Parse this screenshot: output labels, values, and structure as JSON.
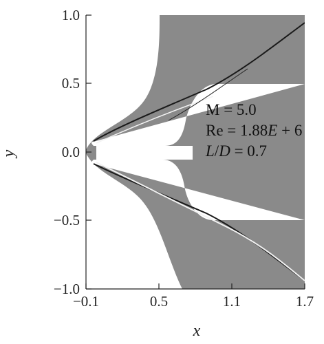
{
  "figure": {
    "type": "schlieren-field-plot",
    "x_axis": {
      "label": "x",
      "range": [
        -0.1,
        1.7
      ],
      "ticks": [
        "−0.1",
        "0.5",
        "1.1",
        "1.7"
      ]
    },
    "y_axis": {
      "label": "y",
      "range": [
        -1.0,
        1.0
      ],
      "ticks": [
        "1.0",
        "0.5",
        "0.0",
        "−0.5",
        "−1.0"
      ]
    },
    "annotations": {
      "mach": "M = 5.0",
      "reynolds_prefix": "Re = 1.88",
      "reynolds_E": "E",
      "reynolds_suffix": " + 6",
      "ld_L": "L",
      "ld_slash": "/",
      "ld_D": "D",
      "ld_value": " = 0.7"
    },
    "colors": {
      "field": "#8a8a8a",
      "body": "#ffffff",
      "shock_dark": "#1a1a1a",
      "shock_light": "#f2f2f2"
    }
  }
}
